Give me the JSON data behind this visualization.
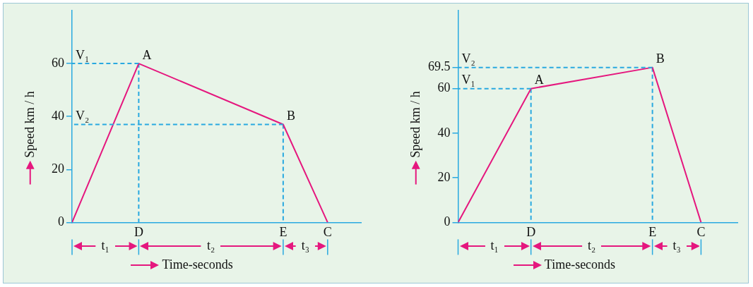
{
  "chart_data": [
    {
      "type": "line",
      "xlabel": "Time-seconds",
      "ylabel": "Speed km / h",
      "categories": [
        null,
        null,
        null,
        null,
        null,
        null,
        "D",
        null,
        null,
        null,
        null,
        null,
        null,
        null,
        null,
        null,
        null,
        null,
        null,
        "E",
        null,
        null,
        null,
        "C",
        null,
        null,
        null
      ],
      "ylim": [
        0,
        80
      ],
      "yticks": [
        0,
        20,
        40,
        60
      ],
      "grid": false,
      "legend": false,
      "marker": "none",
      "series": [
        {
          "color": "#e5177e",
          "values": [
            0,
            null,
            null,
            null,
            null,
            null,
            60,
            null,
            null,
            null,
            null,
            null,
            null,
            null,
            null,
            null,
            null,
            null,
            null,
            37,
            null,
            null,
            null,
            0,
            null,
            null,
            null
          ]
        },
        {
          "color": "#29a9e0",
          "line_style": "dashed",
          "values": [
            60,
            null,
            null,
            null,
            null,
            null,
            60,
            null,
            null,
            null,
            null,
            null,
            null,
            null,
            null,
            null,
            null,
            null,
            null,
            null,
            null,
            null,
            null,
            null,
            null,
            null,
            null
          ]
        },
        {
          "color": "#29a9e0",
          "line_style": "dashed",
          "values": [
            37,
            null,
            null,
            null,
            null,
            null,
            null,
            null,
            null,
            null,
            null,
            null,
            null,
            null,
            null,
            null,
            null,
            null,
            null,
            37,
            null,
            null,
            null,
            null,
            null,
            null,
            null
          ]
        }
      ],
      "ref_lines": [
        {
          "axis": "x",
          "value": "D",
          "color": "#29a9e0",
          "line_style": "dashed"
        },
        {
          "axis": "x",
          "value": "E",
          "color": "#29a9e0",
          "line_style": "dashed"
        }
      ],
      "annotations": [
        {
          "text": "A",
          "x": "D",
          "y": 60
        },
        {
          "text": "B",
          "x": "E",
          "y": 37
        },
        {
          "text": "V₁",
          "y": 60
        },
        {
          "text": "V₂",
          "y": 37
        },
        "t₁",
        "t₂",
        "t₃"
      ]
    },
    {
      "type": "line",
      "xlabel": "Time-seconds",
      "ylabel": "Speed km / h",
      "categories": [
        null,
        null,
        null,
        null,
        null,
        null,
        "D",
        null,
        null,
        null,
        null,
        null,
        null,
        null,
        null,
        null,
        "E",
        null,
        null,
        null,
        "C",
        null,
        null,
        null
      ],
      "ylim": [
        0,
        95
      ],
      "yticks": [
        0,
        20,
        40,
        60,
        69.5
      ],
      "grid": false,
      "legend": false,
      "marker": "none",
      "series": [
        {
          "color": "#e5177e",
          "values": [
            0,
            null,
            null,
            null,
            null,
            null,
            60,
            null,
            null,
            null,
            null,
            null,
            null,
            null,
            null,
            null,
            69.5,
            null,
            null,
            null,
            0,
            null,
            null,
            null
          ]
        },
        {
          "color": "#29a9e0",
          "line_style": "dashed",
          "values": [
            60,
            null,
            null,
            null,
            null,
            null,
            60,
            null,
            null,
            null,
            null,
            null,
            null,
            null,
            null,
            null,
            null,
            null,
            null,
            null,
            null,
            null,
            null,
            null
          ]
        },
        {
          "color": "#29a9e0",
          "line_style": "dashed",
          "values": [
            69.5,
            null,
            null,
            null,
            null,
            null,
            null,
            null,
            null,
            null,
            null,
            null,
            null,
            null,
            null,
            null,
            69.5,
            null,
            null,
            null,
            null,
            null,
            null,
            null
          ]
        }
      ],
      "ref_lines": [
        {
          "axis": "x",
          "value": "D",
          "color": "#29a9e0",
          "line_style": "dashed"
        },
        {
          "axis": "x",
          "value": "E",
          "color": "#29a9e0",
          "line_style": "dashed"
        }
      ],
      "annotations": [
        {
          "text": "A",
          "x": "D",
          "y": 60
        },
        {
          "text": "B",
          "x": "E",
          "y": 69.5
        },
        {
          "text": "V₁",
          "y": 60
        },
        {
          "text": "V₂",
          "y": 69.5
        },
        "t₁",
        "t₂",
        "t₃"
      ]
    }
  ]
}
